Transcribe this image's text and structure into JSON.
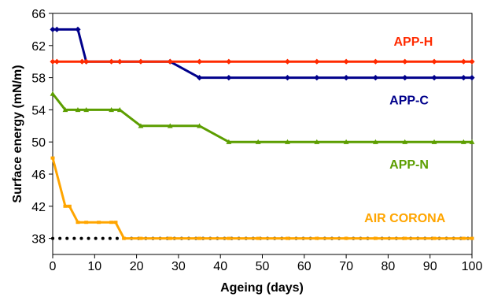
{
  "chart_data": {
    "type": "line",
    "title": "",
    "xlabel": "Ageing (days)",
    "ylabel": "Surface energy (mN/m)",
    "xlim": [
      0,
      100
    ],
    "ylim": [
      36,
      66
    ],
    "xticks": [
      0,
      10,
      20,
      30,
      40,
      50,
      60,
      70,
      80,
      90,
      100
    ],
    "yticks": [
      38,
      42,
      46,
      50,
      54,
      58,
      62,
      66
    ],
    "grid": false,
    "legend": "inline labels",
    "series": [
      {
        "name": "APP-H",
        "color": "#ff2a00",
        "marker": "diamond",
        "x": [
          0,
          1,
          7,
          8,
          14,
          16,
          21,
          28,
          35,
          42,
          56,
          63,
          70,
          77,
          84,
          91,
          98,
          100
        ],
        "y": [
          60,
          60,
          60,
          60,
          60,
          60,
          60,
          60,
          60,
          60,
          60,
          60,
          60,
          60,
          60,
          60,
          60,
          60
        ]
      },
      {
        "name": "APP-C",
        "color": "#00008b",
        "marker": "diamond",
        "x": [
          0,
          1,
          6,
          8,
          28,
          35,
          42,
          56,
          63,
          70,
          77,
          84,
          91,
          98,
          100
        ],
        "y": [
          64,
          64,
          64,
          60,
          60,
          58,
          58,
          58,
          58,
          58,
          58,
          58,
          58,
          58,
          58
        ]
      },
      {
        "name": "APP-N",
        "color": "#5c9e00",
        "marker": "triangle",
        "x": [
          0,
          3,
          6,
          8,
          14,
          16,
          21,
          28,
          35,
          42,
          49,
          56,
          63,
          70,
          77,
          84,
          91,
          98,
          100
        ],
        "y": [
          56,
          54,
          54,
          54,
          54,
          54,
          52,
          52,
          52,
          50,
          50,
          50,
          50,
          50,
          50,
          50,
          50,
          50,
          50
        ]
      },
      {
        "name": "AIR CORONA",
        "color": "#ffa500",
        "marker": "dash",
        "x": [
          0,
          3,
          4,
          6,
          8,
          11,
          14,
          15,
          17,
          21,
          28,
          35,
          42,
          49,
          56,
          63,
          70,
          77,
          84,
          91,
          98,
          100
        ],
        "y": [
          48,
          42,
          42,
          40,
          40,
          40,
          40,
          40,
          38,
          38,
          38,
          38,
          38,
          38,
          38,
          38,
          38,
          38,
          38,
          38,
          38,
          38
        ]
      },
      {
        "name": "",
        "color": "#000000",
        "marker": "dotted-baseline",
        "x": [
          0,
          100
        ],
        "y": [
          38,
          38
        ]
      }
    ],
    "labels": [
      {
        "text": "APP-H",
        "x": 86,
        "y": 62.0,
        "color": "#ff2a00"
      },
      {
        "text": "APP-C",
        "x": 85,
        "y": 54.7,
        "color": "#00008b"
      },
      {
        "text": "APP-N",
        "x": 85,
        "y": 46.7,
        "color": "#5c9e00"
      },
      {
        "text": "AIR CORONA",
        "x": 84,
        "y": 40.0,
        "color": "#ffa500"
      }
    ]
  }
}
